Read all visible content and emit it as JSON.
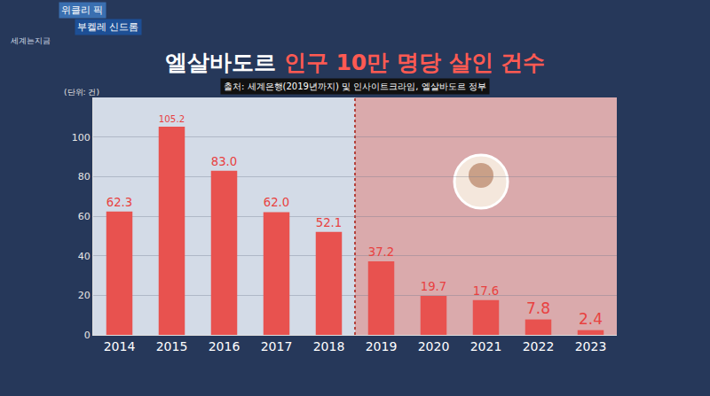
{
  "header": {
    "badges": [
      "위클리 픽",
      "부켈레 신드롬"
    ],
    "brand": "세계는지금"
  },
  "chart_data": {
    "type": "bar",
    "title": "엘살바도르 인구 10만 명당 살인 건수",
    "subtitle": "출처: 세계은행(2019년까지) 및 인사이트크라임, 엘살바도르 정부",
    "annotations": [
      "(단위: 건)"
    ],
    "categories": [
      "2014",
      "2015",
      "2016",
      "2017",
      "2018",
      "2019",
      "2020",
      "2021",
      "2022",
      "2023"
    ],
    "values": [
      62.3,
      105.2,
      83.0,
      62.0,
      52.1,
      37.2,
      19.7,
      17.6,
      7.8,
      2.4
    ],
    "value_labels": [
      "62.3",
      "105.2",
      "83.0",
      "62.0",
      "52.1",
      "37.2",
      "19.7",
      "17.6",
      "7.8",
      "2.4"
    ],
    "color": "#e8524f",
    "data_labels": true,
    "ylim": [
      0,
      120
    ],
    "yticks": [
      0,
      20,
      40,
      60,
      80,
      100
    ],
    "grid": true
  }
}
